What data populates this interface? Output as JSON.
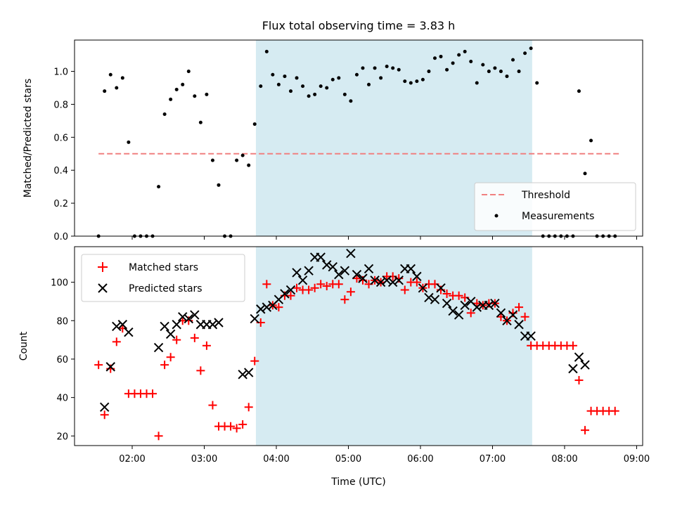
{
  "chart_data": [
    {
      "type": "scatter",
      "title": "Flux total observing time = 3.83 h",
      "xlabel": "",
      "ylabel": "Matched/Predicted stars",
      "xlim": [
        "01:12",
        "09:05"
      ],
      "ylim": [
        0,
        1.19
      ],
      "yticks": [
        0.0,
        0.2,
        0.4,
        0.6,
        0.8,
        1.0
      ],
      "ytick_labels": [
        "0.0",
        "0.2",
        "0.4",
        "0.6",
        "0.8",
        "1.0"
      ],
      "shaded_span": [
        "03:43",
        "07:33"
      ],
      "shaded_color": "#add8e6",
      "legend_position": "lower-right",
      "threshold": {
        "name": "Threshold",
        "y": 0.5,
        "x_range": [
          "01:32",
          "08:47"
        ],
        "color": "#f08080",
        "style": "dashed"
      },
      "series": [
        {
          "name": "Measurements",
          "color": "#000000",
          "marker": "dot",
          "x": [
            "01:32",
            "01:37",
            "01:42",
            "01:47",
            "01:52",
            "01:57",
            "02:02",
            "02:07",
            "02:12",
            "02:17",
            "02:22",
            "02:27",
            "02:32",
            "02:37",
            "02:42",
            "02:47",
            "02:52",
            "02:57",
            "03:02",
            "03:07",
            "03:12",
            "03:17",
            "03:22",
            "03:27",
            "03:32",
            "03:37",
            "03:42",
            "03:47",
            "03:52",
            "03:57",
            "04:02",
            "04:07",
            "04:12",
            "04:17",
            "04:22",
            "04:27",
            "04:32",
            "04:37",
            "04:42",
            "04:47",
            "04:52",
            "04:57",
            "05:02",
            "05:07",
            "05:12",
            "05:17",
            "05:22",
            "05:27",
            "05:32",
            "05:37",
            "05:42",
            "05:47",
            "05:52",
            "05:57",
            "06:02",
            "06:07",
            "06:12",
            "06:17",
            "06:22",
            "06:27",
            "06:32",
            "06:37",
            "06:42",
            "06:47",
            "06:52",
            "06:57",
            "07:02",
            "07:07",
            "07:12",
            "07:17",
            "07:22",
            "07:27",
            "07:32",
            "07:37",
            "07:42",
            "07:47",
            "07:52",
            "07:57",
            "08:02",
            "08:07",
            "08:12",
            "08:17",
            "08:22",
            "08:27",
            "08:32",
            "08:37",
            "08:42"
          ],
          "values": [
            0.0,
            0.88,
            0.98,
            0.9,
            0.96,
            0.57,
            0.0,
            0.0,
            0.0,
            0.0,
            0.3,
            0.74,
            0.83,
            0.89,
            0.92,
            1.0,
            0.85,
            0.69,
            0.86,
            0.46,
            0.31,
            0.0,
            0.0,
            0.46,
            0.49,
            0.43,
            0.68,
            0.91,
            1.12,
            0.98,
            0.92,
            0.97,
            0.88,
            0.96,
            0.91,
            0.85,
            0.86,
            0.91,
            0.9,
            0.95,
            0.96,
            0.86,
            0.82,
            0.98,
            1.02,
            0.92,
            1.02,
            0.96,
            1.03,
            1.02,
            1.01,
            0.94,
            0.93,
            0.94,
            0.95,
            1.0,
            1.08,
            1.09,
            1.01,
            1.05,
            1.1,
            1.12,
            1.06,
            0.93,
            1.04,
            1.0,
            1.02,
            1.0,
            0.97,
            1.07,
            1.0,
            1.11,
            1.14,
            0.93,
            0.0,
            0.0,
            0.0,
            0.0,
            0.0,
            0.0,
            0.88,
            0.38,
            0.58,
            0.0,
            0.0,
            0.0,
            0.0
          ]
        }
      ]
    },
    {
      "type": "scatter",
      "title": "",
      "xlabel": "Time (UTC)",
      "ylabel": "Count",
      "xlim": [
        "01:12",
        "09:05"
      ],
      "ylim": [
        15,
        118.5
      ],
      "yticks": [
        20,
        40,
        60,
        80,
        100
      ],
      "ytick_labels": [
        "20",
        "40",
        "60",
        "80",
        "100"
      ],
      "xticks": [
        "02:00",
        "03:00",
        "04:00",
        "05:00",
        "06:00",
        "07:00",
        "08:00",
        "09:00"
      ],
      "xtick_labels": [
        "02:00",
        "03:00",
        "04:00",
        "05:00",
        "06:00",
        "07:00",
        "08:00",
        "09:00"
      ],
      "shaded_span": [
        "03:43",
        "07:33"
      ],
      "shaded_color": "#add8e6",
      "legend_position": "upper-left",
      "series": [
        {
          "name": "Matched stars",
          "color": "#ff0000",
          "marker": "plus",
          "x": [
            "01:32",
            "01:37",
            "01:42",
            "01:47",
            "01:52",
            "01:57",
            "02:02",
            "02:07",
            "02:12",
            "02:17",
            "02:22",
            "02:27",
            "02:32",
            "02:37",
            "02:42",
            "02:47",
            "02:52",
            "02:57",
            "03:02",
            "03:07",
            "03:12",
            "03:17",
            "03:22",
            "03:27",
            "03:32",
            "03:37",
            "03:42",
            "03:47",
            "03:52",
            "03:57",
            "04:02",
            "04:07",
            "04:12",
            "04:17",
            "04:22",
            "04:27",
            "04:32",
            "04:37",
            "04:42",
            "04:47",
            "04:52",
            "04:57",
            "05:02",
            "05:07",
            "05:12",
            "05:17",
            "05:22",
            "05:27",
            "05:32",
            "05:37",
            "05:42",
            "05:47",
            "05:52",
            "05:57",
            "06:02",
            "06:07",
            "06:12",
            "06:17",
            "06:22",
            "06:27",
            "06:32",
            "06:37",
            "06:42",
            "06:47",
            "06:52",
            "06:57",
            "07:02",
            "07:07",
            "07:12",
            "07:17",
            "07:22",
            "07:27",
            "07:32",
            "07:37",
            "07:42",
            "07:47",
            "07:52",
            "07:57",
            "08:02",
            "08:07",
            "08:12",
            "08:17",
            "08:22",
            "08:27",
            "08:32",
            "08:37",
            "08:42"
          ],
          "values": [
            57,
            31,
            55,
            69,
            76,
            42,
            42,
            42,
            42,
            42,
            20,
            57,
            61,
            70,
            80,
            80,
            71,
            54,
            67,
            36,
            25,
            25,
            25,
            24,
            26,
            35,
            59,
            79,
            99,
            88,
            87,
            93,
            93,
            97,
            96,
            96,
            97,
            99,
            98,
            99,
            99,
            91,
            95,
            102,
            101,
            99,
            101,
            100,
            103,
            103,
            102,
            96,
            100,
            100,
            97,
            99,
            99,
            96,
            94,
            93,
            93,
            92,
            84,
            89,
            88,
            89,
            89,
            82,
            80,
            84,
            87,
            82,
            67,
            67,
            67,
            67,
            67,
            67,
            67,
            67,
            49,
            23,
            33,
            33,
            33,
            33,
            33
          ]
        },
        {
          "name": "Predicted stars",
          "color": "#000000",
          "marker": "cross",
          "x": [
            "01:37",
            "01:42",
            "01:47",
            "01:52",
            "01:57",
            "02:22",
            "02:27",
            "02:32",
            "02:37",
            "02:42",
            "02:47",
            "02:52",
            "02:57",
            "03:02",
            "03:07",
            "03:12",
            "03:32",
            "03:37",
            "03:42",
            "03:47",
            "03:52",
            "03:57",
            "04:02",
            "04:07",
            "04:12",
            "04:17",
            "04:22",
            "04:27",
            "04:32",
            "04:37",
            "04:42",
            "04:47",
            "04:52",
            "04:57",
            "05:02",
            "05:07",
            "05:12",
            "05:17",
            "05:22",
            "05:27",
            "05:32",
            "05:37",
            "05:42",
            "05:47",
            "05:52",
            "05:57",
            "06:02",
            "06:07",
            "06:12",
            "06:17",
            "06:22",
            "06:27",
            "06:32",
            "06:37",
            "06:42",
            "06:47",
            "06:52",
            "06:57",
            "07:02",
            "07:07",
            "07:12",
            "07:17",
            "07:22",
            "07:27",
            "07:32",
            "08:07",
            "08:12",
            "08:17"
          ],
          "values": [
            35,
            56,
            77,
            78,
            74,
            66,
            77,
            73,
            78,
            82,
            81,
            83,
            78,
            78,
            78,
            79,
            52,
            53,
            81,
            86,
            87,
            88,
            91,
            94,
            96,
            105,
            101,
            106,
            113,
            113,
            109,
            108,
            104,
            106,
            115,
            104,
            102,
            107,
            101,
            100,
            101,
            100,
            101,
            107,
            107,
            103,
            97,
            92,
            91,
            97,
            89,
            85,
            83,
            88,
            90,
            87,
            88,
            88,
            89,
            84,
            80,
            83,
            78,
            72,
            72,
            55,
            61,
            57
          ]
        }
      ]
    }
  ]
}
